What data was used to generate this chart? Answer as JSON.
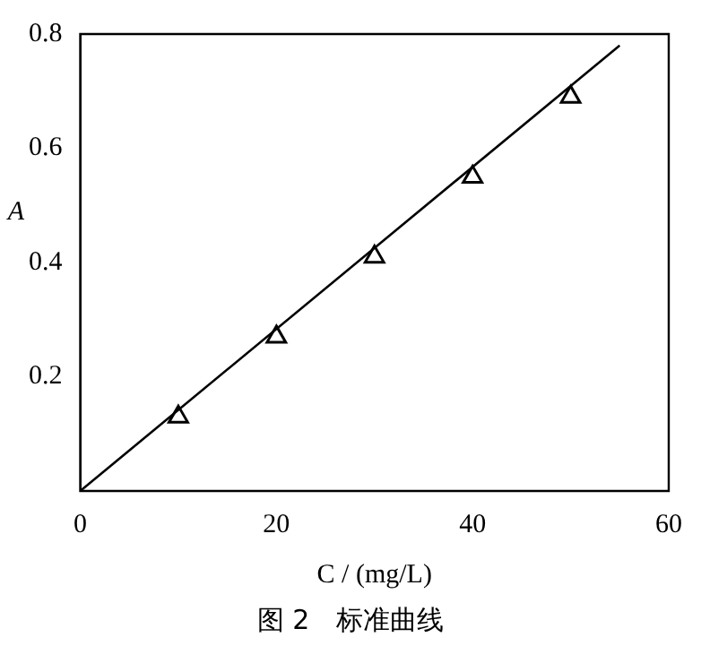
{
  "chart_data": {
    "type": "scatter",
    "xlabel": "C / (mg/L)",
    "ylabel": "A",
    "annotations": [
      "图 2　标准曲线"
    ],
    "xlim": [
      0,
      60
    ],
    "xticks": [
      0,
      20,
      40,
      60
    ],
    "ylim": [
      0,
      0.8
    ],
    "yticks": [
      0.2,
      0.4,
      0.6,
      0.8
    ],
    "grid": false,
    "legend": false,
    "marker": "triangle",
    "series": [
      {
        "type": "scatter",
        "color": "#000000",
        "x": [
          10,
          20,
          30,
          40,
          50
        ],
        "values": [
          0.13,
          0.27,
          0.41,
          0.55,
          0.69
        ]
      },
      {
        "type": "line",
        "color": "#000000",
        "x": [
          0,
          55
        ],
        "values": [
          0,
          0.78
        ],
        "marker": "none"
      }
    ]
  }
}
